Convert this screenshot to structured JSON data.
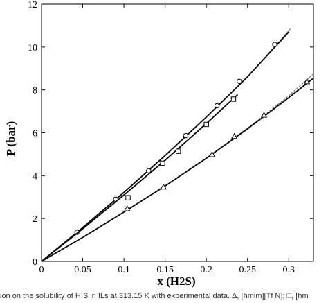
{
  "chart_data": {
    "type": "line",
    "xlabel": "x (H2S)",
    "ylabel": "P (bar)",
    "xlim": [
      0,
      0.33
    ],
    "ylim": [
      0,
      12
    ],
    "x_ticks": [
      "0",
      "0.05",
      "0.1",
      "0.15",
      "0.2",
      "0.25",
      "0.3"
    ],
    "x_tick_values": [
      0,
      0.05,
      0.1,
      0.15,
      0.2,
      0.25,
      0.3
    ],
    "y_ticks": [
      "0",
      "2",
      "4",
      "6",
      "8",
      "10",
      "12"
    ],
    "y_tick_values": [
      0,
      2,
      4,
      6,
      8,
      10,
      12
    ],
    "grid": false,
    "series": [
      {
        "marker": "circle",
        "points": [
          [
            0.043,
            1.36
          ],
          [
            0.09,
            2.9
          ],
          [
            0.13,
            4.23
          ],
          [
            0.175,
            5.87
          ],
          [
            0.213,
            7.26
          ],
          [
            0.24,
            8.4
          ],
          [
            0.283,
            10.12
          ]
        ],
        "model_solid": [
          [
            0,
            0
          ],
          [
            0.05,
            1.58
          ],
          [
            0.1,
            3.22
          ],
          [
            0.15,
            4.94
          ],
          [
            0.2,
            6.73
          ],
          [
            0.25,
            8.61
          ],
          [
            0.3,
            10.7
          ]
        ],
        "model_dashed": [
          [
            0,
            0
          ],
          [
            0.05,
            1.57
          ],
          [
            0.1,
            3.2
          ],
          [
            0.15,
            4.92
          ],
          [
            0.2,
            6.72
          ],
          [
            0.25,
            8.62
          ],
          [
            0.302,
            10.85
          ]
        ]
      },
      {
        "marker": "square",
        "points": [
          [
            0.105,
            2.97
          ],
          [
            0.147,
            4.58
          ],
          [
            0.166,
            5.14
          ],
          [
            0.2,
            6.39
          ],
          [
            0.233,
            7.57
          ]
        ],
        "model_solid": [
          [
            0,
            0
          ],
          [
            0.05,
            1.52
          ],
          [
            0.1,
            3.1
          ],
          [
            0.15,
            4.72
          ],
          [
            0.2,
            6.43
          ],
          [
            0.238,
            7.78
          ]
        ],
        "model_dashed": [
          [
            0,
            0
          ],
          [
            0.05,
            1.51
          ],
          [
            0.1,
            3.08
          ],
          [
            0.15,
            4.7
          ],
          [
            0.2,
            6.41
          ],
          [
            0.238,
            7.8
          ]
        ]
      },
      {
        "marker": "triangle",
        "points": [
          [
            0.104,
            2.46
          ],
          [
            0.148,
            3.47
          ],
          [
            0.207,
            4.98
          ],
          [
            0.234,
            5.83
          ],
          [
            0.27,
            6.82
          ],
          [
            0.322,
            8.38
          ]
        ],
        "model_solid": [
          [
            0,
            0
          ],
          [
            0.05,
            1.12
          ],
          [
            0.1,
            2.3
          ],
          [
            0.15,
            3.52
          ],
          [
            0.2,
            4.81
          ],
          [
            0.25,
            6.18
          ],
          [
            0.3,
            7.64
          ],
          [
            0.33,
            8.55
          ]
        ],
        "model_dashed": [
          [
            0,
            0
          ],
          [
            0.05,
            1.12
          ],
          [
            0.1,
            2.3
          ],
          [
            0.15,
            3.53
          ],
          [
            0.2,
            4.83
          ],
          [
            0.25,
            6.22
          ],
          [
            0.3,
            7.72
          ],
          [
            0.33,
            8.75
          ]
        ]
      }
    ]
  },
  "caption": "ion on the solubility of H S in ILs at 313.15 K with experimental data. Δ, [hmim][Tf N]; □, [hm"
}
